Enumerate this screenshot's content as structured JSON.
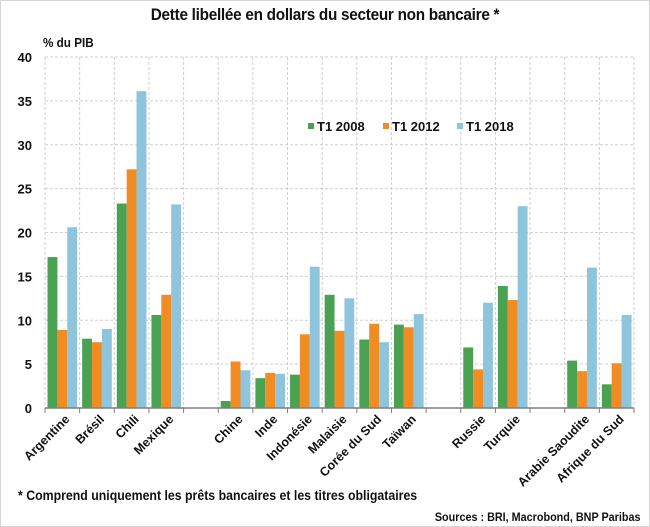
{
  "chart_data": {
    "type": "bar",
    "title": "Dette libellée en dollars du secteur non bancaire *",
    "ylabel": "% du PIB",
    "xlabel": "",
    "ylim": [
      0,
      40
    ],
    "yticks": [
      0,
      5,
      10,
      15,
      20,
      25,
      30,
      35,
      40
    ],
    "grid": true,
    "legend_position": "top-center",
    "categories": [
      "Argentine",
      "Brésil",
      "Chili",
      "Mexique",
      "",
      "Chine",
      "Inde",
      "Indonésie",
      "Malaisie",
      "Corée du Sud",
      "Taïwan",
      "",
      "Russie",
      "Turquie",
      "",
      "Arabie Saoudite",
      "Afrique du Sud"
    ],
    "series": [
      {
        "name": "T1 2008",
        "color": "#4aa152",
        "values": [
          17.2,
          7.9,
          23.3,
          10.6,
          null,
          0.8,
          3.4,
          3.8,
          12.9,
          7.8,
          9.5,
          null,
          6.9,
          13.9,
          null,
          5.4,
          2.7
        ]
      },
      {
        "name": "T1 2012",
        "color": "#f08c24",
        "values": [
          8.9,
          7.5,
          27.2,
          12.9,
          null,
          5.3,
          4.0,
          8.4,
          8.8,
          9.6,
          9.2,
          null,
          4.4,
          12.3,
          null,
          4.2,
          5.1
        ]
      },
      {
        "name": "T1 2018",
        "color": "#8ec4dc",
        "values": [
          20.6,
          9.0,
          36.1,
          23.2,
          null,
          4.3,
          3.9,
          16.1,
          12.5,
          7.5,
          10.7,
          null,
          12.0,
          23.0,
          null,
          16.0,
          10.6
        ]
      }
    ]
  },
  "footnote": "* Comprend uniquement les prêts bancaires et les titres obligataires",
  "sources": "Sources : BRI, Macrobond, BNP Paribas"
}
